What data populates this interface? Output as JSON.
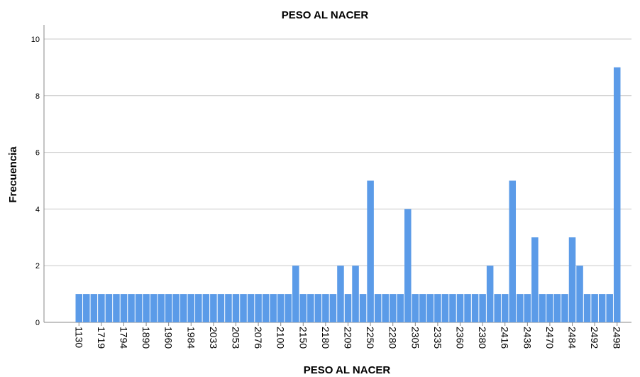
{
  "chart_data": {
    "type": "bar",
    "title": "PESO AL NACER",
    "x_label": "PESO AL NACER",
    "y_label": "Frecuencia",
    "categories": [
      "1130",
      null,
      null,
      "1719",
      null,
      null,
      "1794",
      null,
      null,
      "1890",
      null,
      null,
      "1960",
      null,
      null,
      "1984",
      null,
      null,
      "2033",
      null,
      null,
      "2053",
      null,
      null,
      "2076",
      null,
      null,
      "2100",
      null,
      null,
      "2150",
      null,
      null,
      "2180",
      null,
      null,
      "2209",
      null,
      null,
      "2250",
      null,
      null,
      "2280",
      null,
      null,
      "2305",
      null,
      null,
      "2335",
      null,
      null,
      "2360",
      null,
      null,
      "2380",
      null,
      null,
      "2416",
      null,
      null,
      "2436",
      null,
      null,
      "2470",
      null,
      null,
      "2484",
      null,
      null,
      "2492",
      null,
      null,
      "2498"
    ],
    "values": [
      1,
      1,
      1,
      1,
      1,
      1,
      1,
      1,
      1,
      1,
      1,
      1,
      1,
      1,
      1,
      1,
      1,
      1,
      1,
      1,
      1,
      1,
      1,
      1,
      1,
      1,
      1,
      1,
      1,
      2,
      1,
      1,
      1,
      1,
      1,
      2,
      1,
      2,
      1,
      5,
      1,
      1,
      1,
      1,
      4,
      1,
      1,
      1,
      1,
      1,
      1,
      1,
      1,
      1,
      1,
      2,
      1,
      1,
      5,
      1,
      1,
      3,
      1,
      1,
      1,
      1,
      3,
      2,
      1,
      1,
      1,
      1,
      9
    ],
    "color": "#5b9be8",
    "ylim": [
      0,
      10.5
    ],
    "yticks": [
      0,
      2,
      4,
      6,
      8,
      10
    ],
    "grid": true
  }
}
